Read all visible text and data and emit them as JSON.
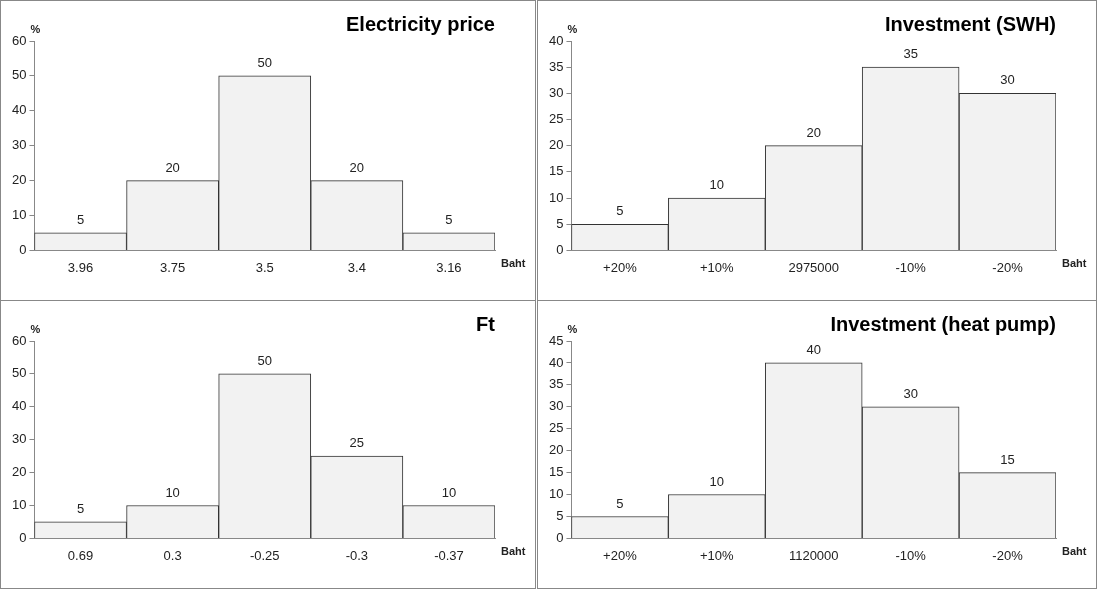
{
  "chart_data": [
    {
      "type": "bar",
      "title": "Electricity price",
      "xlabel": "Baht",
      "ylabel": "%",
      "categories": [
        "3.96",
        "3.75",
        "3.5",
        "3.4",
        "3.16"
      ],
      "values": [
        5,
        20,
        50,
        20,
        5
      ],
      "color": "#f2f2f2",
      "ylim": [
        0,
        60
      ],
      "yticks": [
        0,
        10,
        20,
        30,
        40,
        50,
        60
      ],
      "data_labels": true,
      "grid": false,
      "legend": false
    },
    {
      "type": "bar",
      "title": "Investment (SWH)",
      "xlabel": "Baht",
      "ylabel": "%",
      "categories": [
        "+20%",
        "+10%",
        "2975000",
        "-10%",
        "-20%"
      ],
      "values": [
        5,
        10,
        20,
        35,
        30
      ],
      "color": "#f2f2f2",
      "ylim": [
        0,
        40
      ],
      "yticks": [
        0,
        5,
        10,
        15,
        20,
        25,
        30,
        35,
        40
      ],
      "data_labels": true,
      "grid": false,
      "legend": false
    },
    {
      "type": "bar",
      "title": "Ft",
      "xlabel": "Baht",
      "ylabel": "%",
      "categories": [
        "0.69",
        "0.3",
        "-0.25",
        "-0.3",
        "-0.37"
      ],
      "values": [
        5,
        10,
        50,
        25,
        10
      ],
      "color": "#f2f2f2",
      "ylim": [
        0,
        60
      ],
      "yticks": [
        0,
        10,
        20,
        30,
        40,
        50,
        60
      ],
      "data_labels": true,
      "grid": false,
      "legend": false
    },
    {
      "type": "bar",
      "title": "Investment (heat pump)",
      "xlabel": "Baht",
      "ylabel": "%",
      "categories": [
        "+20%",
        "+10%",
        "1120000",
        "-10%",
        "-20%"
      ],
      "values": [
        5,
        10,
        40,
        30,
        15
      ],
      "color": "#f2f2f2",
      "ylim": [
        0,
        45
      ],
      "yticks": [
        0,
        5,
        10,
        15,
        20,
        25,
        30,
        35,
        40,
        45
      ],
      "data_labels": true,
      "grid": false,
      "legend": false
    }
  ]
}
